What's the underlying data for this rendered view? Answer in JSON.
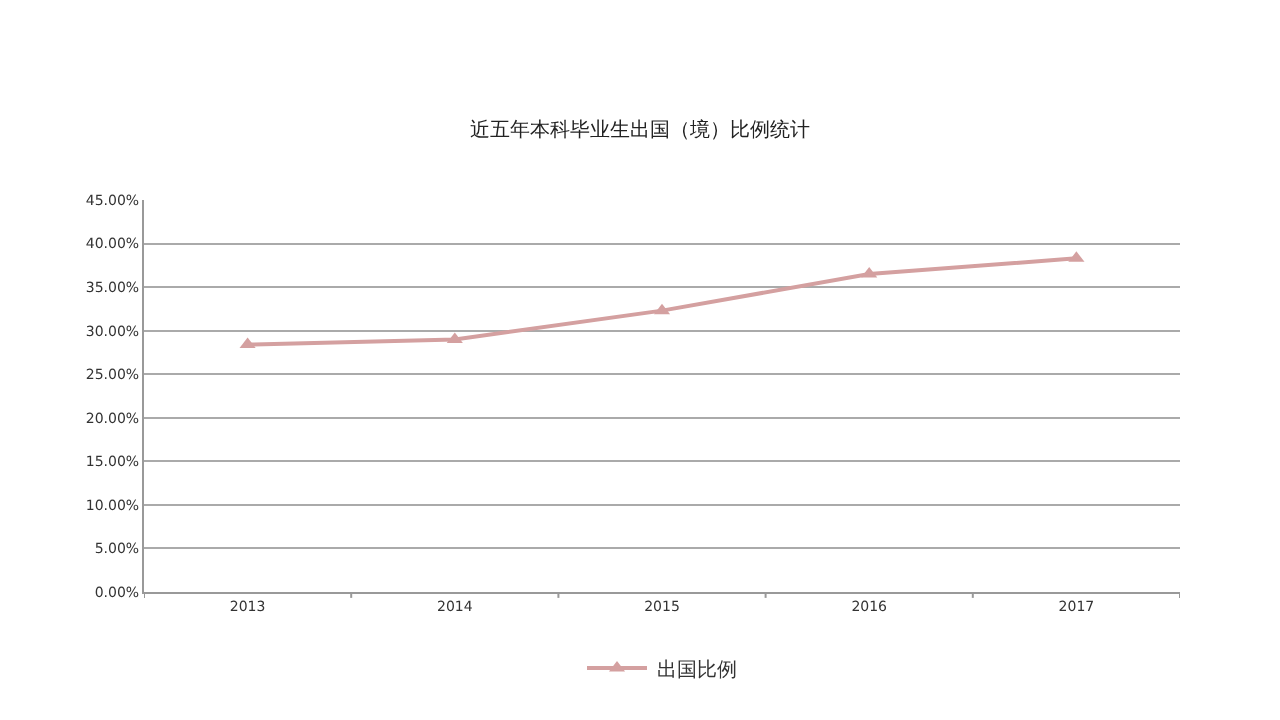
{
  "chart_data": {
    "type": "line",
    "title": "近五年本科毕业生出国（境）比例统计",
    "categories": [
      "2013",
      "2014",
      "2015",
      "2016",
      "2017"
    ],
    "series": [
      {
        "name": "出国比例",
        "color": "#d4a0a0",
        "values": [
          28.4,
          29.0,
          32.3,
          36.5,
          38.3
        ]
      }
    ],
    "ylim": [
      0,
      45
    ],
    "yticks": [
      {
        "value": 0,
        "label": "0.00%"
      },
      {
        "value": 5,
        "label": "5.00%"
      },
      {
        "value": 10,
        "label": "10.00%"
      },
      {
        "value": 15,
        "label": "15.00%"
      },
      {
        "value": 20,
        "label": "20.00%"
      },
      {
        "value": 25,
        "label": "25.00%"
      },
      {
        "value": 30,
        "label": "30.00%"
      },
      {
        "value": 35,
        "label": "35.00%"
      },
      {
        "value": 40,
        "label": "40.00%"
      },
      {
        "value": 45,
        "label": "45.00%"
      }
    ],
    "grid": "y",
    "legend": "bottom",
    "marker": "triangle",
    "line_style": "solid"
  }
}
